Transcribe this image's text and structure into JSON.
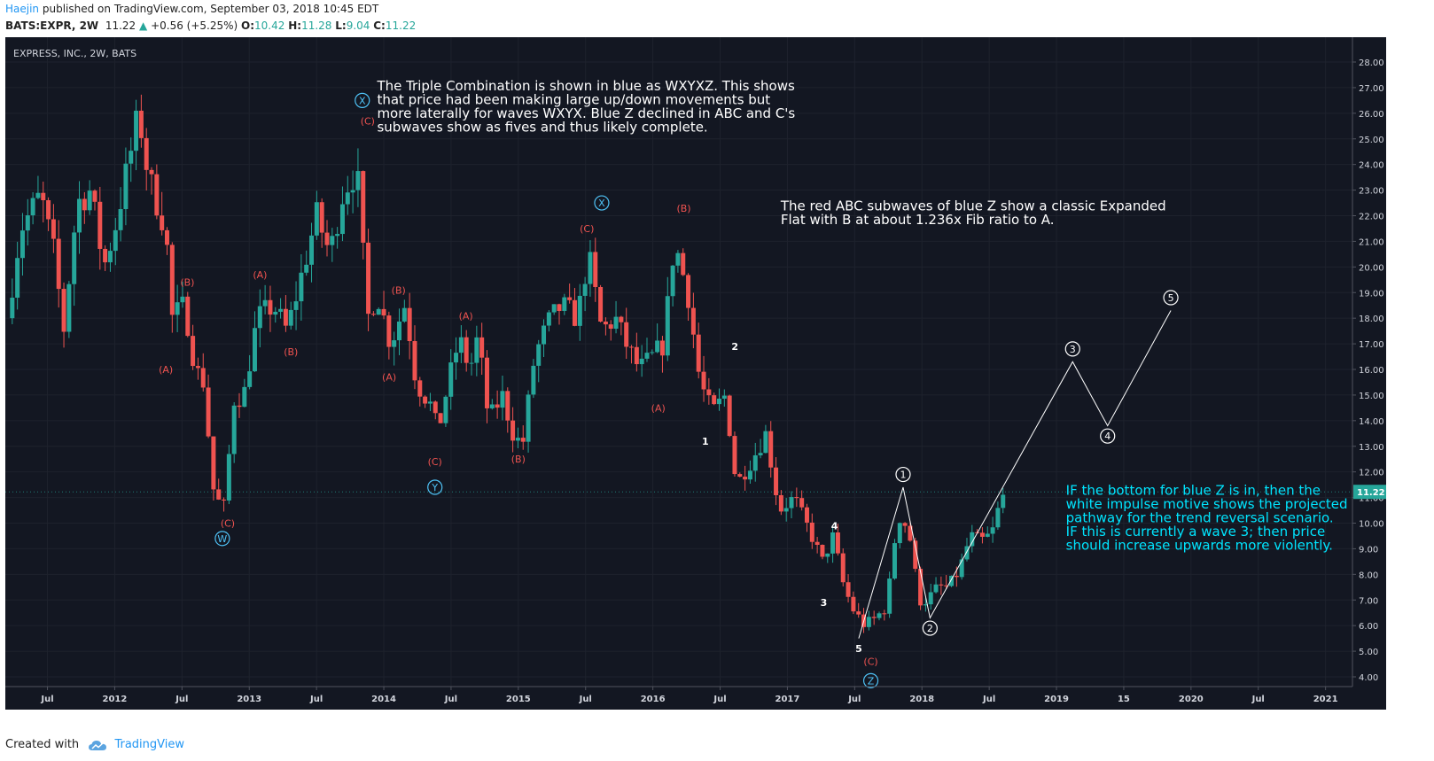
{
  "header": {
    "author": "Haejin",
    "published_text": "published on TradingView.com, September 03, 2018 10:45 EDT",
    "symbol": "BATS:EXPR, 2W",
    "last": "11.22",
    "change": "+0.56 (+5.25%)",
    "ohlc": [
      {
        "label": "O:",
        "value": "10.42"
      },
      {
        "label": "H:",
        "value": "11.28"
      },
      {
        "label": "L:",
        "value": "9.04"
      },
      {
        "label": "C:",
        "value": "11.22"
      }
    ]
  },
  "colors": {
    "background": "#131722",
    "up": "#26a69a",
    "down": "#ef5350",
    "blue_label": "#4fc3f7",
    "red_label": "#ef5350",
    "annotation": "#ffffff",
    "cyan_annotation": "#00e5ff",
    "price_tag": "#26a69a"
  },
  "chart_data": {
    "type": "candlestick",
    "title": "EXPRESS, INC., 2W, BATS",
    "ylim": [
      3.5,
      28.5
    ],
    "yticks": [
      "4.00",
      "5.00",
      "6.00",
      "7.00",
      "8.00",
      "9.00",
      "10.00",
      "11.00",
      "12.00",
      "13.00",
      "14.00",
      "15.00",
      "16.00",
      "17.00",
      "18.00",
      "19.00",
      "20.00",
      "21.00",
      "22.00",
      "23.00",
      "24.00",
      "25.00",
      "26.00",
      "27.00",
      "28.00"
    ],
    "last_price": "11.22",
    "xlim": [
      2011.2,
      2021.2
    ],
    "xticks": [
      {
        "t": 2011.5,
        "label": "Jul"
      },
      {
        "t": 2012.0,
        "label": "2012"
      },
      {
        "t": 2012.5,
        "label": "Jul"
      },
      {
        "t": 2013.0,
        "label": "2013"
      },
      {
        "t": 2013.5,
        "label": "Jul"
      },
      {
        "t": 2014.0,
        "label": "2014"
      },
      {
        "t": 2014.5,
        "label": "Jul"
      },
      {
        "t": 2015.0,
        "label": "2015"
      },
      {
        "t": 2015.5,
        "label": "Jul"
      },
      {
        "t": 2016.0,
        "label": "2016"
      },
      {
        "t": 2016.5,
        "label": "Jul"
      },
      {
        "t": 2017.0,
        "label": "2017"
      },
      {
        "t": 2017.5,
        "label": "Jul"
      },
      {
        "t": 2018.0,
        "label": "2018"
      },
      {
        "t": 2018.5,
        "label": "Jul"
      },
      {
        "t": 2019.0,
        "label": "2019"
      },
      {
        "t": 2019.5,
        "label": "15"
      },
      {
        "t": 2020.0,
        "label": "2020"
      },
      {
        "t": 2020.5,
        "label": "Jul"
      },
      {
        "t": 2021.0,
        "label": "2021"
      }
    ],
    "path": [
      [
        2011.2,
        18.0
      ],
      [
        2011.3,
        21.5
      ],
      [
        2011.45,
        22.8
      ],
      [
        2011.55,
        20.5
      ],
      [
        2011.62,
        17.5
      ],
      [
        2011.72,
        22.5
      ],
      [
        2011.82,
        23.0
      ],
      [
        2011.92,
        20.0
      ],
      [
        2012.0,
        21.5
      ],
      [
        2012.1,
        24.0
      ],
      [
        2012.18,
        26.0
      ],
      [
        2012.25,
        23.5
      ],
      [
        2012.38,
        21.5
      ],
      [
        2012.42,
        18.0
      ],
      [
        2012.52,
        18.5
      ],
      [
        2012.6,
        16.0
      ],
      [
        2012.66,
        15.5
      ],
      [
        2012.74,
        11.0
      ],
      [
        2012.82,
        10.6
      ],
      [
        2012.88,
        14.8
      ],
      [
        2012.96,
        15.0
      ],
      [
        2013.06,
        18.0
      ],
      [
        2013.18,
        18.5
      ],
      [
        2013.28,
        17.5
      ],
      [
        2013.38,
        19.5
      ],
      [
        2013.5,
        22.0
      ],
      [
        2013.6,
        20.5
      ],
      [
        2013.7,
        23.0
      ],
      [
        2013.8,
        23.8
      ],
      [
        2013.88,
        18.0
      ],
      [
        2013.95,
        19.0
      ],
      [
        2014.05,
        17.0
      ],
      [
        2014.16,
        18.6
      ],
      [
        2014.24,
        15.5
      ],
      [
        2014.36,
        14.5
      ],
      [
        2014.4,
        13.5
      ],
      [
        2014.48,
        15.5
      ],
      [
        2014.56,
        17.2
      ],
      [
        2014.64,
        16.0
      ],
      [
        2014.7,
        17.3
      ],
      [
        2014.78,
        14.0
      ],
      [
        2014.88,
        15.0
      ],
      [
        2014.96,
        13.5
      ],
      [
        2015.03,
        13.0
      ],
      [
        2015.12,
        16.5
      ],
      [
        2015.22,
        17.8
      ],
      [
        2015.32,
        18.5
      ],
      [
        2015.44,
        18.0
      ],
      [
        2015.52,
        20.5
      ],
      [
        2015.62,
        17.5
      ],
      [
        2015.72,
        18.0
      ],
      [
        2015.8,
        17.0
      ],
      [
        2015.9,
        16.0
      ],
      [
        2016.0,
        16.5
      ],
      [
        2016.08,
        17.0
      ],
      [
        2016.16,
        21.0
      ],
      [
        2016.26,
        19.0
      ],
      [
        2016.35,
        15.5
      ],
      [
        2016.44,
        14.3
      ],
      [
        2016.54,
        15.0
      ],
      [
        2016.62,
        11.5
      ],
      [
        2016.74,
        12.5
      ],
      [
        2016.84,
        13.5
      ],
      [
        2016.94,
        10.5
      ],
      [
        2017.05,
        11.0
      ],
      [
        2017.18,
        9.5
      ],
      [
        2017.26,
        8.5
      ],
      [
        2017.34,
        9.5
      ],
      [
        2017.42,
        7.5
      ],
      [
        2017.5,
        6.5
      ],
      [
        2017.58,
        6.0
      ],
      [
        2017.66,
        6.3
      ],
      [
        2017.74,
        6.8
      ],
      [
        2017.82,
        10.3
      ],
      [
        2017.9,
        9.8
      ],
      [
        2017.98,
        7.0
      ],
      [
        2018.04,
        7.0
      ],
      [
        2018.12,
        7.5
      ],
      [
        2018.2,
        7.5
      ],
      [
        2018.28,
        8.2
      ],
      [
        2018.36,
        9.5
      ],
      [
        2018.44,
        9.3
      ],
      [
        2018.52,
        9.6
      ],
      [
        2018.58,
        10.8
      ],
      [
        2018.62,
        11.2
      ]
    ],
    "projection": [
      {
        "t": 2017.53,
        "p": 5.5
      },
      {
        "t": 2017.86,
        "p": 11.4
      },
      {
        "t": 2018.06,
        "p": 6.3
      },
      {
        "t": 2019.12,
        "p": 16.3
      },
      {
        "t": 2019.38,
        "p": 13.8
      },
      {
        "t": 2019.85,
        "p": 18.3
      }
    ],
    "wave_labels": [
      {
        "text": "W",
        "t": 2012.8,
        "p": 9.4,
        "style": "blue-circle"
      },
      {
        "text": "X",
        "t": 2013.84,
        "p": 26.5,
        "style": "blue-circle"
      },
      {
        "text": "Y",
        "t": 2014.38,
        "p": 11.4,
        "style": "blue-circle"
      },
      {
        "text": "X",
        "t": 2015.62,
        "p": 22.5,
        "style": "blue-circle"
      },
      {
        "text": "Z",
        "t": 2017.62,
        "p": 3.85,
        "style": "blue-circle"
      },
      {
        "text": "(C)",
        "t": 2012.84,
        "p": 10.0,
        "style": "red"
      },
      {
        "text": "(A)",
        "t": 2012.38,
        "p": 16.0,
        "style": "red"
      },
      {
        "text": "(B)",
        "t": 2012.54,
        "p": 19.4,
        "style": "red"
      },
      {
        "text": "(C)",
        "t": 2013.88,
        "p": 25.7,
        "style": "red"
      },
      {
        "text": "(A)",
        "t": 2013.08,
        "p": 19.7,
        "style": "red"
      },
      {
        "text": "(B)",
        "t": 2013.31,
        "p": 16.7,
        "style": "red"
      },
      {
        "text": "(B)",
        "t": 2014.11,
        "p": 19.1,
        "style": "red"
      },
      {
        "text": "(A)",
        "t": 2014.04,
        "p": 15.7,
        "style": "red"
      },
      {
        "text": "(C)",
        "t": 2014.38,
        "p": 12.4,
        "style": "red"
      },
      {
        "text": "(A)",
        "t": 2014.61,
        "p": 18.1,
        "style": "red"
      },
      {
        "text": "(B)",
        "t": 2015.0,
        "p": 12.5,
        "style": "red"
      },
      {
        "text": "(C)",
        "t": 2015.51,
        "p": 21.5,
        "style": "red"
      },
      {
        "text": "(B)",
        "t": 2016.23,
        "p": 22.3,
        "style": "red"
      },
      {
        "text": "(A)",
        "t": 2016.04,
        "p": 14.5,
        "style": "red"
      },
      {
        "text": "(C)",
        "t": 2017.62,
        "p": 4.6,
        "style": "red"
      },
      {
        "text": "1",
        "t": 2016.39,
        "p": 13.2,
        "style": "white"
      },
      {
        "text": "2",
        "t": 2016.61,
        "p": 16.9,
        "style": "white"
      },
      {
        "text": "3",
        "t": 2017.27,
        "p": 6.9,
        "style": "white"
      },
      {
        "text": "4",
        "t": 2017.35,
        "p": 9.9,
        "style": "white"
      },
      {
        "text": "5",
        "t": 2017.53,
        "p": 5.1,
        "style": "white"
      },
      {
        "text": "1",
        "t": 2017.86,
        "p": 11.9,
        "style": "white-circle"
      },
      {
        "text": "2",
        "t": 2018.06,
        "p": 5.9,
        "style": "white-circle"
      },
      {
        "text": "3",
        "t": 2019.12,
        "p": 16.8,
        "style": "white-circle"
      },
      {
        "text": "4",
        "t": 2019.38,
        "p": 13.4,
        "style": "white-circle"
      },
      {
        "text": "5",
        "t": 2019.85,
        "p": 18.8,
        "style": "white-circle"
      }
    ],
    "annotations": [
      {
        "lines": [
          "The Triple Combination is shown in blue as WXYXZ. This shows",
          "that price had been making large up/down movements but",
          "more laterally for waves WXYX. Blue Z declined in ABC and C's",
          "subwaves show as fives and thus likely complete."
        ],
        "t": 2013.95,
        "p": 26.9,
        "color": "white"
      },
      {
        "lines": [
          "The red ABC subwaves of blue Z show a classic Expanded",
          "Flat with B at about 1.236x Fib ratio to A."
        ],
        "t": 2016.95,
        "p": 22.2,
        "color": "white"
      },
      {
        "lines": [
          "IF the bottom for blue Z is in, then the",
          "white impulse motive shows the projected",
          "pathway for the trend reversal scenario.",
          "IF this is currently a wave 3; then price",
          "should increase upwards more violently."
        ],
        "t": 2019.07,
        "p": 11.1,
        "color": "cyan"
      }
    ]
  },
  "footer": {
    "created_with": "Created with",
    "brand": "TradingView"
  }
}
